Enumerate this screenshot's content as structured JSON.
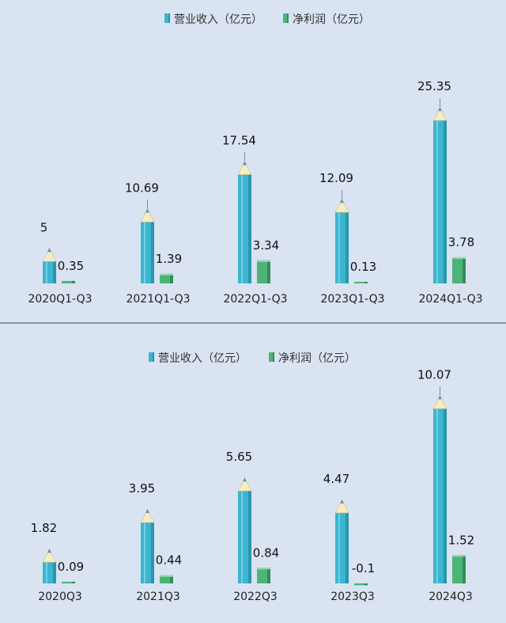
{
  "colors": {
    "revenue": "#3db5cf",
    "revenue_dark": "#2a95ae",
    "profit": "#4cb477",
    "profit_dark": "#2f8f55",
    "tip": "#f4ecc4",
    "lead": "#6f8ea3",
    "background": "#d9e3f2"
  },
  "chart_data": [
    {
      "type": "bar",
      "categories": [
        "2020Q1-Q3",
        "2021Q1-Q3",
        "2022Q1-Q3",
        "2023Q1-Q3",
        "2024Q1-Q3"
      ],
      "series": [
        {
          "name": "营业收入（亿元）",
          "values": [
            5,
            10.69,
            17.54,
            12.09,
            25.35
          ],
          "labels": [
            "5",
            "10.69",
            "17.54",
            "12.09",
            "25.35"
          ]
        },
        {
          "name": "净利润（亿元）",
          "values": [
            0.35,
            1.39,
            3.34,
            0.13,
            3.78
          ],
          "labels": [
            "0.35",
            "1.39",
            "3.34",
            "0.13",
            "3.78"
          ]
        }
      ],
      "legend": "top-center",
      "grid": false
    },
    {
      "type": "bar",
      "categories": [
        "2020Q3",
        "2021Q3",
        "2022Q3",
        "2023Q3",
        "2024Q3"
      ],
      "series": [
        {
          "name": "营业收入（亿元）",
          "values": [
            1.82,
            3.95,
            5.65,
            4.47,
            10.07
          ],
          "labels": [
            "1.82",
            "3.95",
            "5.65",
            "4.47",
            "10.07"
          ]
        },
        {
          "name": "净利润（亿元）",
          "values": [
            0.09,
            0.44,
            0.84,
            -0.1,
            1.52
          ],
          "labels": [
            "0.09",
            "0.44",
            "0.84",
            "-0.1",
            "1.52"
          ]
        }
      ],
      "legend": "top-center",
      "grid": false
    }
  ]
}
